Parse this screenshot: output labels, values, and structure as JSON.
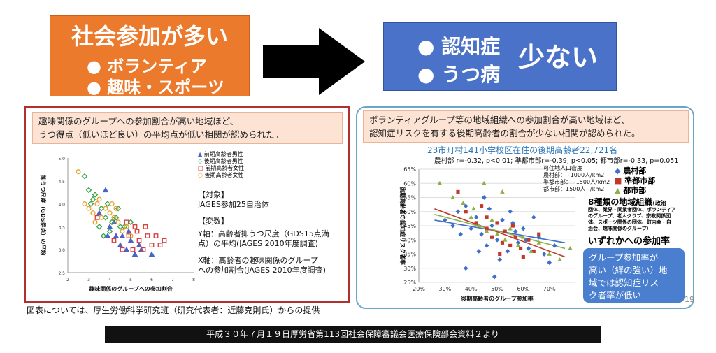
{
  "banner_left": {
    "title": "社会参加が多い",
    "items": [
      "● ボランティア",
      "● 趣味・スポーツ"
    ]
  },
  "banner_right": {
    "items": [
      "● 認知症",
      "● うつ病"
    ],
    "suffix": "少ない"
  },
  "left_panel": {
    "note_lines": [
      "趣味関係のグループへの参加割合が高い地域ほど、",
      "うつ得点（低いほど良い）の平均点が低い相関が認められた。"
    ],
    "legend": [
      "前期高齢者男性",
      "後期高齢者男性",
      "前期高齢者女性",
      "後期高齢者女性"
    ],
    "subject_heading": "【対象】",
    "subject_text": "JAGES参加25自治体",
    "vars_heading": "【変数】",
    "y_var": [
      "Y軸：高齢者抑うつ尺度（GDS15点満",
      "点）の平均(JAGES 2010年度調査)"
    ],
    "x_var": [
      "X軸：高齢者の趣味関係のグループ",
      "への参加割合(JAGES 2010年度調査)"
    ]
  },
  "right_panel": {
    "note_lines": [
      "ボランティアグループ等の地域組織への参加割合が高い地域ほど、",
      "認知症リスクを有する後期高齢者の割合が少ない相関が認められた。"
    ],
    "chart_title": "23市町村141小学校区在住の後期高齢者22,721名",
    "stats": "農村部 r=-0.32, p<0.01; 準都市部r=-0.39, p<0.05; 都市部r=-0.33, p=0.051",
    "density": [
      "可住地人口密度",
      "農村部：~1000人/km2",
      "準都市部：~1500人/km2",
      "都市部：1500人~/km2"
    ],
    "legend": [
      "農村部",
      "準都市部",
      "都市部"
    ],
    "orgs_title": "8種類の地域組織",
    "orgs_suffix": "(政治",
    "orgs_lines": [
      "団体、業界・同業者団体、ボランティア",
      "のグループ、老人クラブ、宗教関係団",
      "体、スポーツ関係の団体、町内会・自",
      "治会、趣味関係のグループ）"
    ],
    "orgs_rate": "いずれかへの参加率",
    "popup": [
      "グループ参加率が",
      "高い（絆の強い）地",
      "域では認知症リス",
      "ク者率が低い"
    ],
    "page_number": "19"
  },
  "source": "図表については、厚生労働科学研究班（研究代表者：近藤克則氏）からの提供",
  "footer": "平成３０年７月１９日厚労省第113回社会保障審議会医療保険部会資料２より",
  "chart_data": [
    {
      "type": "scatter",
      "xlabel": "趣味関係のグループへの参加割合",
      "ylabel": "抑うつ尺度（GDS得点）の平均",
      "xlim": [
        2,
        8
      ],
      "ylim": [
        2.5,
        5
      ],
      "xticks": [
        "2",
        "3",
        "4",
        "5",
        "6",
        "7",
        "8"
      ],
      "yticks": [
        "2.5",
        "3.0",
        "3.5",
        "4.0",
        "4.5",
        "5.0"
      ],
      "series": [
        {
          "name": "前期高齢者男性",
          "color": "#4a63c8",
          "marker": "triangle",
          "points": [
            [
              3.9,
              3.3
            ],
            [
              4.3,
              3.3
            ],
            [
              4.5,
              3.1
            ],
            [
              4.8,
              3.0
            ],
            [
              5.0,
              3.2
            ],
            [
              5.5,
              3.0
            ],
            [
              4.0,
              3.5
            ],
            [
              3.5,
              3.8
            ],
            [
              4.6,
              3.3
            ],
            [
              5.2,
              2.9
            ],
            [
              4.2,
              3.6
            ],
            [
              3.8,
              4.3
            ],
            [
              4.9,
              3.4
            ],
            [
              5.4,
              3.1
            ],
            [
              6.0,
              2.9
            ]
          ]
        },
        {
          "name": "後期高齢者男性",
          "color": "#3aa34a",
          "marker": "diamond",
          "points": [
            [
              2.8,
              4.6
            ],
            [
              3.0,
              4.3
            ],
            [
              3.2,
              4.1
            ],
            [
              3.3,
              4.2
            ],
            [
              3.6,
              3.9
            ],
            [
              3.8,
              3.7
            ],
            [
              4.1,
              3.6
            ],
            [
              4.3,
              3.7
            ],
            [
              3.5,
              3.5
            ],
            [
              4.0,
              3.4
            ],
            [
              4.5,
              3.5
            ],
            [
              3.9,
              4.0
            ],
            [
              4.7,
              3.5
            ],
            [
              5.0,
              3.6
            ],
            [
              4.4,
              3.9
            ],
            [
              3.1,
              4.0
            ],
            [
              3.7,
              3.3
            ]
          ]
        },
        {
          "name": "前期高齢者女性",
          "color": "#d83a3a",
          "marker": "square",
          "points": [
            [
              3.4,
              3.7
            ],
            [
              4.2,
              3.2
            ],
            [
              4.6,
              3.0
            ],
            [
              4.9,
              3.3
            ],
            [
              5.2,
              3.5
            ],
            [
              5.4,
              3.2
            ],
            [
              5.6,
              3.0
            ],
            [
              5.8,
              3.3
            ],
            [
              6.0,
              3.1
            ],
            [
              6.2,
              3.3
            ],
            [
              6.4,
              3.1
            ],
            [
              4.8,
              3.6
            ],
            [
              5.1,
              3.0
            ],
            [
              5.7,
              3.5
            ],
            [
              6.6,
              3.2
            ],
            [
              5.3,
              3.4
            ]
          ]
        },
        {
          "name": "後期高齢者女性",
          "color": "#e8a12a",
          "marker": "circle",
          "points": [
            [
              2.5,
              4.7
            ],
            [
              2.8,
              4.0
            ],
            [
              3.0,
              3.9
            ],
            [
              3.2,
              3.8
            ],
            [
              3.4,
              4.0
            ],
            [
              3.6,
              3.7
            ],
            [
              3.8,
              3.9
            ],
            [
              4.0,
              3.8
            ],
            [
              4.2,
              3.7
            ],
            [
              4.4,
              3.6
            ],
            [
              4.6,
              3.4
            ],
            [
              4.8,
              3.5
            ],
            [
              5.0,
              3.3
            ],
            [
              3.5,
              4.1
            ],
            [
              4.1,
              4.0
            ],
            [
              4.3,
              3.9
            ],
            [
              3.3,
              3.6
            ]
          ]
        }
      ]
    },
    {
      "type": "scatter",
      "title": "23市町村141小学校区在住の後期高齢者22,721名",
      "xlabel": "後期高齢者のグループ参加率",
      "ylabel": "後期高齢者の認知症リスク者率",
      "xlim": [
        20,
        80
      ],
      "ylim": [
        25,
        65
      ],
      "xticks": [
        "20%",
        "30%",
        "40%",
        "50%",
        "60%",
        "70%"
      ],
      "yticks": [
        "25%",
        "30%",
        "35%",
        "40%",
        "45%",
        "50%",
        "55%",
        "60%",
        "65%"
      ],
      "series": [
        {
          "name": "農村部",
          "color": "#3f6fc8",
          "marker": "diamond",
          "points": [
            [
              30,
              47
            ],
            [
              33,
              45
            ],
            [
              35,
              50
            ],
            [
              38,
              52
            ],
            [
              40,
              44
            ],
            [
              42,
              48
            ],
            [
              44,
              42
            ],
            [
              45,
              55
            ],
            [
              46,
              38
            ],
            [
              48,
              45
            ],
            [
              50,
              40
            ],
            [
              52,
              47
            ],
            [
              54,
              36
            ],
            [
              55,
              50
            ],
            [
              57,
              43
            ],
            [
              58,
              39
            ],
            [
              60,
              44
            ],
            [
              62,
              37
            ],
            [
              64,
              48
            ],
            [
              66,
              41
            ],
            [
              68,
              35
            ],
            [
              70,
              32
            ],
            [
              72,
              38
            ],
            [
              36,
              42
            ],
            [
              43,
              36
            ],
            [
              47,
              51
            ],
            [
              51,
              33
            ],
            [
              56,
              46
            ],
            [
              61,
              40
            ],
            [
              38,
              30
            ],
            [
              49,
              27
            ]
          ]
        },
        {
          "name": "準都市部",
          "color": "#c0392b",
          "marker": "square",
          "points": [
            [
              35,
              57
            ],
            [
              38,
              50
            ],
            [
              42,
              46
            ],
            [
              44,
              52
            ],
            [
              46,
              44
            ],
            [
              48,
              41
            ],
            [
              50,
              46
            ],
            [
              52,
              39
            ],
            [
              53,
              43
            ],
            [
              55,
              38
            ],
            [
              57,
              41
            ],
            [
              59,
              37
            ],
            [
              62,
              40
            ],
            [
              64,
              36
            ],
            [
              66,
              42
            ],
            [
              46,
              48
            ],
            [
              51,
              35
            ],
            [
              56,
              45
            ],
            [
              60,
              34
            ]
          ]
        },
        {
          "name": "都市部",
          "color": "#8ab04a",
          "marker": "triangle",
          "points": [
            [
              28,
              60
            ],
            [
              33,
              55
            ],
            [
              37,
              53
            ],
            [
              40,
              48
            ],
            [
              43,
              45
            ],
            [
              46,
              43
            ],
            [
              48,
              47
            ],
            [
              50,
              42
            ],
            [
              53,
              40
            ],
            [
              55,
              44
            ],
            [
              58,
              38
            ],
            [
              60,
              41
            ],
            [
              63,
              36
            ],
            [
              66,
              39
            ],
            [
              70,
              35
            ],
            [
              74,
              33
            ],
            [
              78,
              37
            ],
            [
              45,
              60
            ],
            [
              52,
              57
            ],
            [
              41,
              51
            ]
          ]
        }
      ],
      "trendlines": [
        {
          "name": "農村部",
          "x": [
            26,
            76
          ],
          "y": [
            47,
            39
          ]
        },
        {
          "name": "準都市部",
          "x": [
            26,
            76
          ],
          "y": [
            51,
            34
          ]
        },
        {
          "name": "都市部",
          "x": [
            26,
            76
          ],
          "y": [
            49,
            37
          ]
        }
      ]
    }
  ]
}
